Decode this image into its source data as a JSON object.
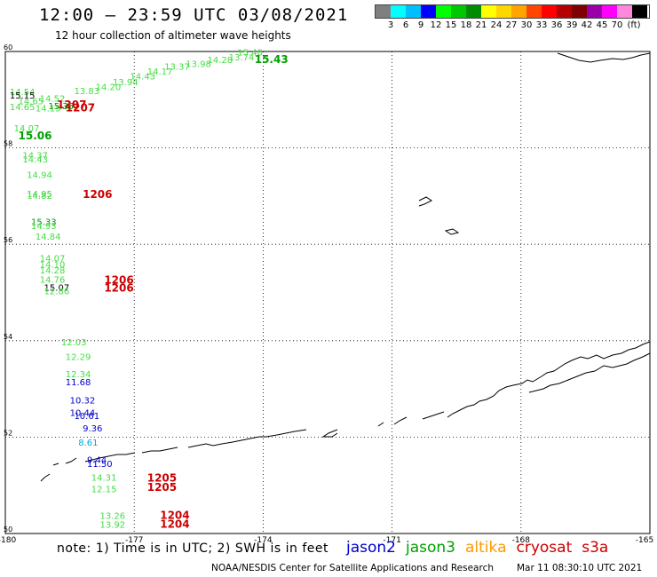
{
  "header": {
    "title": "12:00 – 23:59 UTC 03/08/2021",
    "subtitle": "12 hour collection of altimeter wave heights"
  },
  "scale_legend": {
    "unit": "(ft)",
    "colors": [
      "#7f7f7f",
      "#00ffff",
      "#00bfff",
      "#0000ff",
      "#00ff00",
      "#00c800",
      "#008c00",
      "#ffff00",
      "#ffd700",
      "#ffa500",
      "#ff4500",
      "#ff0000",
      "#b40000",
      "#800000",
      "#9900aa",
      "#ff00ff",
      "#ff88dd",
      "#000000"
    ],
    "labels": [
      "3",
      "6",
      "9",
      "12",
      "15",
      "18",
      "21",
      "24",
      "27",
      "30",
      "33",
      "36",
      "39",
      "42",
      "45",
      "70"
    ]
  },
  "map": {
    "lon_range": [
      -180,
      -165
    ],
    "lat_range": [
      50,
      60
    ],
    "lon_ticks": [
      "-180",
      "-177",
      "-174",
      "-171",
      "-168",
      "-165"
    ],
    "lat_ticks": [
      "60",
      "58",
      "56",
      "54",
      "52",
      "50"
    ],
    "grid": true,
    "colors": {
      "jason2": "#0000cc",
      "jason3": "#00a000",
      "jason3_light": "#44dd44",
      "altika": "#ff9900",
      "cryosat": "#cc0000",
      "s3a": "#cc0000",
      "black": "#000000",
      "cyan": "#00aadd"
    }
  },
  "observations": [
    {
      "text": "15.48",
      "lon": -174.6,
      "lat": 59.92,
      "color": "jason3_light"
    },
    {
      "text": "15.43",
      "lon": -174.2,
      "lat": 59.76,
      "color": "jason3",
      "bold": true
    },
    {
      "text": "13.74",
      "lon": -174.8,
      "lat": 59.82,
      "color": "jason3_light"
    },
    {
      "text": "14.28",
      "lon": -175.3,
      "lat": 59.76,
      "color": "jason3_light"
    },
    {
      "text": "13.98",
      "lon": -175.8,
      "lat": 59.68,
      "color": "jason3_light"
    },
    {
      "text": "13.37",
      "lon": -176.3,
      "lat": 59.62,
      "color": "jason3_light"
    },
    {
      "text": "14.17",
      "lon": -176.7,
      "lat": 59.52,
      "color": "jason3_light"
    },
    {
      "text": "14.43",
      "lon": -177.1,
      "lat": 59.42,
      "color": "jason3_light"
    },
    {
      "text": "13.94",
      "lon": -177.5,
      "lat": 59.3,
      "color": "jason3_light"
    },
    {
      "text": "14.20",
      "lon": -177.9,
      "lat": 59.2,
      "color": "jason3_light"
    },
    {
      "text": "13.83",
      "lon": -178.4,
      "lat": 59.12,
      "color": "jason3_light"
    },
    {
      "text": "14.54",
      "lon": -179.9,
      "lat": 59.1,
      "color": "jason3_light"
    },
    {
      "text": "15.15",
      "lon": -179.9,
      "lat": 59.02,
      "color": "black"
    },
    {
      "text": "14.52",
      "lon": -179.2,
      "lat": 58.96,
      "color": "jason3_light"
    },
    {
      "text": "14.65",
      "lon": -179.7,
      "lat": 58.9,
      "color": "jason3_light"
    },
    {
      "text": "1207",
      "lon": -178.8,
      "lat": 58.82,
      "color": "cryosat",
      "bold": true
    },
    {
      "text": "14.65",
      "lon": -179.9,
      "lat": 58.78,
      "color": "jason3_light"
    },
    {
      "text": "14.15",
      "lon": -179.3,
      "lat": 58.76,
      "color": "jason3_light"
    },
    {
      "text": "1207",
      "lon": -178.6,
      "lat": 58.76,
      "color": "cryosat",
      "bold": true
    },
    {
      "text": "15.35",
      "lon": -179.0,
      "lat": 58.8,
      "color": "jason3"
    },
    {
      "text": "14.07",
      "lon": -179.8,
      "lat": 58.34,
      "color": "jason3_light"
    },
    {
      "text": "15.06",
      "lon": -179.7,
      "lat": 58.18,
      "color": "jason3",
      "bold": true
    },
    {
      "text": "14.37",
      "lon": -179.6,
      "lat": 57.78,
      "color": "jason3_light"
    },
    {
      "text": "14.43",
      "lon": -179.6,
      "lat": 57.7,
      "color": "jason3_light"
    },
    {
      "text": "14.94",
      "lon": -179.5,
      "lat": 57.38,
      "color": "jason3_light"
    },
    {
      "text": "14.95",
      "lon": -179.5,
      "lat": 56.98,
      "color": "jason3_light"
    },
    {
      "text": "14.82",
      "lon": -179.5,
      "lat": 56.94,
      "color": "jason3_light"
    },
    {
      "text": "1206",
      "lon": -178.2,
      "lat": 56.96,
      "color": "cryosat",
      "bold": true
    },
    {
      "text": "15.33",
      "lon": -179.4,
      "lat": 56.4,
      "color": "jason3"
    },
    {
      "text": "14.93",
      "lon": -179.4,
      "lat": 56.32,
      "color": "jason3_light"
    },
    {
      "text": "14.84",
      "lon": -179.3,
      "lat": 56.1,
      "color": "jason3_light"
    },
    {
      "text": "14.07",
      "lon": -179.2,
      "lat": 55.64,
      "color": "jason3_light"
    },
    {
      "text": "14.10",
      "lon": -179.2,
      "lat": 55.52,
      "color": "jason3_light"
    },
    {
      "text": "14.28",
      "lon": -179.2,
      "lat": 55.4,
      "color": "jason3_light"
    },
    {
      "text": "14.76",
      "lon": -179.2,
      "lat": 55.2,
      "color": "jason3_light"
    },
    {
      "text": "15.07",
      "lon": -179.1,
      "lat": 55.04,
      "color": "black"
    },
    {
      "text": "12.86",
      "lon": -179.1,
      "lat": 54.96,
      "color": "jason3_light"
    },
    {
      "text": "1206",
      "lon": -177.7,
      "lat": 55.18,
      "color": "cryosat",
      "bold": true
    },
    {
      "text": "1206",
      "lon": -177.7,
      "lat": 55.02,
      "color": "cryosat",
      "bold": true
    },
    {
      "text": "12.03",
      "lon": -178.7,
      "lat": 53.9,
      "color": "jason3_light"
    },
    {
      "text": "12.29",
      "lon": -178.6,
      "lat": 53.6,
      "color": "jason3_light"
    },
    {
      "text": "12.34",
      "lon": -178.6,
      "lat": 53.24,
      "color": "jason3_light"
    },
    {
      "text": "11.68",
      "lon": -178.6,
      "lat": 53.08,
      "color": "jason2"
    },
    {
      "text": "10.32",
      "lon": -178.5,
      "lat": 52.7,
      "color": "jason2"
    },
    {
      "text": "10.44",
      "lon": -178.5,
      "lat": 52.44,
      "color": "jason2"
    },
    {
      "text": "10.61",
      "lon": -178.4,
      "lat": 52.38,
      "color": "jason2"
    },
    {
      "text": "9.36",
      "lon": -178.2,
      "lat": 52.12,
      "color": "jason2"
    },
    {
      "text": "8.61",
      "lon": -178.3,
      "lat": 51.82,
      "color": "cyan"
    },
    {
      "text": "9.44",
      "lon": -178.1,
      "lat": 51.46,
      "color": "jason2"
    },
    {
      "text": "11.50",
      "lon": -178.1,
      "lat": 51.38,
      "color": "jason2"
    },
    {
      "text": "14.31",
      "lon": -178.0,
      "lat": 51.1,
      "color": "jason3_light"
    },
    {
      "text": "12.15",
      "lon": -178.0,
      "lat": 50.86,
      "color": "jason3_light"
    },
    {
      "text": "1205",
      "lon": -176.7,
      "lat": 51.08,
      "color": "cryosat",
      "bold": true
    },
    {
      "text": "1205",
      "lon": -176.7,
      "lat": 50.88,
      "color": "cryosat",
      "bold": true
    },
    {
      "text": "13.26",
      "lon": -177.8,
      "lat": 50.3,
      "color": "jason3_light"
    },
    {
      "text": "13.92",
      "lon": -177.8,
      "lat": 50.12,
      "color": "jason3_light"
    },
    {
      "text": "1204",
      "lon": -176.4,
      "lat": 50.3,
      "color": "cryosat",
      "bold": true
    },
    {
      "text": "1204",
      "lon": -176.4,
      "lat": 50.12,
      "color": "cryosat",
      "bold": true
    }
  ],
  "footer": {
    "note": "note: 1) Time is in UTC; 2) SWH is in feet",
    "satellites": [
      {
        "name": "jason2",
        "color": "#0000cc"
      },
      {
        "name": "jason3",
        "color": "#00a000"
      },
      {
        "name": "altika",
        "color": "#ff9900"
      },
      {
        "name": "cryosat",
        "color": "#cc0000"
      },
      {
        "name": "s3a",
        "color": "#cc0000"
      }
    ],
    "credit": "NOAA/NESDIS Center for Satellite Applications and Research",
    "timestamp": "Mar 11 08:30:10 UTC 2021"
  }
}
